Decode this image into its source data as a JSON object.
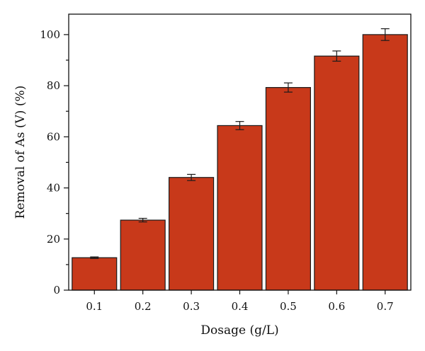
{
  "chart_data": {
    "type": "bar",
    "xlabel": "Dosage (g/L)",
    "ylabel": "Removal of As (V) (%)",
    "categories": [
      "0.1",
      "0.2",
      "0.3",
      "0.4",
      "0.5",
      "0.6",
      "0.7"
    ],
    "values": [
      12.7,
      27.4,
      44.1,
      64.4,
      79.3,
      91.6,
      100.0
    ],
    "errors": [
      0.3,
      0.7,
      1.2,
      1.6,
      1.8,
      2.0,
      2.3
    ],
    "ylim": [
      0,
      108
    ],
    "yticks": [
      "0",
      "20",
      "40",
      "60",
      "80",
      "100"
    ],
    "grid": false,
    "bar_color": "#c8391a",
    "bar_edge_color": "#1a1a1a"
  }
}
